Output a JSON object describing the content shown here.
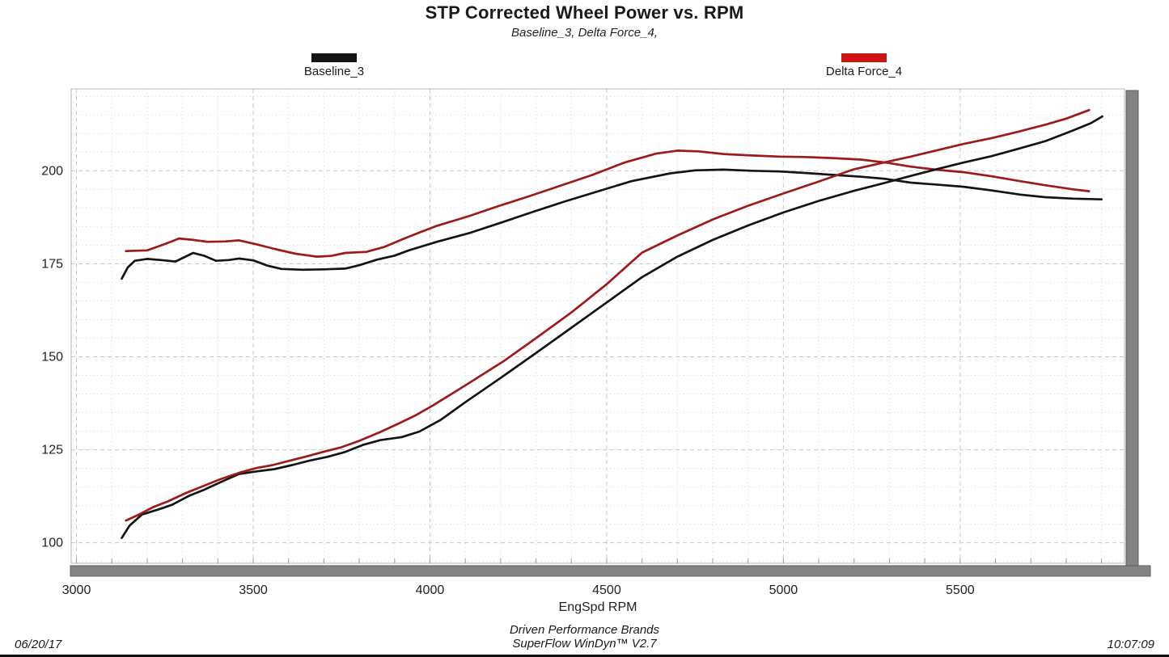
{
  "header": {
    "title": "STP Corrected Wheel Power vs. RPM",
    "subtitle": "Baseline_3,  Delta Force_4,"
  },
  "legend": {
    "items": [
      {
        "label": "Baseline_3",
        "color": "#141414"
      },
      {
        "label": "Delta Force_4",
        "color": "#cc1414"
      }
    ]
  },
  "footer": {
    "date": "06/20/17",
    "brand_line1": "Driven Performance Brands",
    "brand_line2": "SuperFlow WinDyn™ V2.7",
    "time": "10:07:09"
  },
  "chart_data": {
    "type": "line",
    "title": "STP Corrected Wheel Power vs. RPM",
    "subtitle": "Baseline_3, Delta Force_4,",
    "xlabel": "EngSpd  RPM",
    "ylabel": "",
    "xlim": [
      2985,
      5965
    ],
    "ylim": [
      94.5,
      222
    ],
    "x_ticks": [
      3000,
      3500,
      4000,
      4500,
      5000,
      5500
    ],
    "y_ticks": [
      100,
      125,
      150,
      175,
      200
    ],
    "x_minor_step": 100,
    "y_minor_step": 5,
    "grid": true,
    "legend_position": "top",
    "series": [
      {
        "name": "Baseline_3 (upper curve)",
        "color": "#141414",
        "points": [
          [
            3128,
            171.0
          ],
          [
            3145,
            174.0
          ],
          [
            3165,
            175.8
          ],
          [
            3200,
            176.3
          ],
          [
            3240,
            176.0
          ],
          [
            3280,
            175.6
          ],
          [
            3330,
            177.9
          ],
          [
            3360,
            177.2
          ],
          [
            3395,
            175.8
          ],
          [
            3430,
            176.0
          ],
          [
            3460,
            176.4
          ],
          [
            3500,
            175.9
          ],
          [
            3540,
            174.5
          ],
          [
            3580,
            173.6
          ],
          [
            3640,
            173.4
          ],
          [
            3700,
            173.5
          ],
          [
            3760,
            173.7
          ],
          [
            3800,
            174.6
          ],
          [
            3850,
            176.1
          ],
          [
            3900,
            177.2
          ],
          [
            3940,
            178.6
          ],
          [
            4020,
            180.9
          ],
          [
            4110,
            183.2
          ],
          [
            4200,
            186.0
          ],
          [
            4290,
            188.9
          ],
          [
            4380,
            191.7
          ],
          [
            4470,
            194.3
          ],
          [
            4570,
            197.2
          ],
          [
            4680,
            199.3
          ],
          [
            4750,
            200.1
          ],
          [
            4830,
            200.3
          ],
          [
            4910,
            200.0
          ],
          [
            4990,
            199.8
          ],
          [
            5060,
            199.4
          ],
          [
            5140,
            198.9
          ],
          [
            5220,
            198.4
          ],
          [
            5290,
            197.8
          ],
          [
            5360,
            196.8
          ],
          [
            5430,
            196.3
          ],
          [
            5510,
            195.7
          ],
          [
            5590,
            194.7
          ],
          [
            5670,
            193.6
          ],
          [
            5740,
            192.9
          ],
          [
            5820,
            192.5
          ],
          [
            5900,
            192.3
          ]
        ]
      },
      {
        "name": "Delta Force_4 (upper curve)",
        "color": "#9e1a1a",
        "points": [
          [
            3140,
            178.4
          ],
          [
            3200,
            178.6
          ],
          [
            3250,
            180.3
          ],
          [
            3290,
            181.8
          ],
          [
            3330,
            181.4
          ],
          [
            3370,
            180.9
          ],
          [
            3420,
            181.0
          ],
          [
            3460,
            181.3
          ],
          [
            3510,
            180.2
          ],
          [
            3560,
            179.0
          ],
          [
            3620,
            177.7
          ],
          [
            3680,
            176.9
          ],
          [
            3720,
            177.1
          ],
          [
            3760,
            177.9
          ],
          [
            3820,
            178.2
          ],
          [
            3870,
            179.5
          ],
          [
            3920,
            181.5
          ],
          [
            3970,
            183.4
          ],
          [
            4020,
            185.2
          ],
          [
            4110,
            187.8
          ],
          [
            4200,
            190.7
          ],
          [
            4270,
            192.8
          ],
          [
            4360,
            195.7
          ],
          [
            4460,
            198.9
          ],
          [
            4550,
            202.2
          ],
          [
            4640,
            204.6
          ],
          [
            4700,
            205.4
          ],
          [
            4760,
            205.2
          ],
          [
            4830,
            204.5
          ],
          [
            4910,
            204.1
          ],
          [
            4990,
            203.8
          ],
          [
            5060,
            203.7
          ],
          [
            5140,
            203.4
          ],
          [
            5220,
            203.0
          ],
          [
            5290,
            202.2
          ],
          [
            5360,
            201.1
          ],
          [
            5430,
            200.3
          ],
          [
            5510,
            199.6
          ],
          [
            5590,
            198.5
          ],
          [
            5670,
            197.2
          ],
          [
            5740,
            196.1
          ],
          [
            5820,
            195.0
          ],
          [
            5865,
            194.5
          ]
        ]
      },
      {
        "name": "Baseline_3 (rising curve)",
        "color": "#141414",
        "points": [
          [
            3128,
            101.3
          ],
          [
            3150,
            104.6
          ],
          [
            3185,
            107.6
          ],
          [
            3230,
            108.9
          ],
          [
            3270,
            110.2
          ],
          [
            3320,
            112.7
          ],
          [
            3360,
            114.2
          ],
          [
            3410,
            116.4
          ],
          [
            3460,
            118.5
          ],
          [
            3510,
            119.2
          ],
          [
            3560,
            119.8
          ],
          [
            3610,
            120.9
          ],
          [
            3660,
            122.1
          ],
          [
            3710,
            123.1
          ],
          [
            3760,
            124.4
          ],
          [
            3810,
            126.3
          ],
          [
            3860,
            127.6
          ],
          [
            3920,
            128.4
          ],
          [
            3970,
            129.9
          ],
          [
            4030,
            133.0
          ],
          [
            4100,
            137.8
          ],
          [
            4200,
            144.3
          ],
          [
            4300,
            151.0
          ],
          [
            4400,
            157.8
          ],
          [
            4500,
            164.6
          ],
          [
            4600,
            171.4
          ],
          [
            4700,
            176.9
          ],
          [
            4800,
            181.4
          ],
          [
            4900,
            185.3
          ],
          [
            5000,
            188.8
          ],
          [
            5100,
            191.9
          ],
          [
            5200,
            194.6
          ],
          [
            5277,
            196.5
          ],
          [
            5356,
            198.5
          ],
          [
            5433,
            200.4
          ],
          [
            5509,
            202.2
          ],
          [
            5588,
            203.9
          ],
          [
            5665,
            205.9
          ],
          [
            5742,
            208.0
          ],
          [
            5821,
            210.9
          ],
          [
            5870,
            212.8
          ],
          [
            5902,
            214.6
          ]
        ]
      },
      {
        "name": "Delta Force_4 (rising curve)",
        "color": "#9e1a1a",
        "points": [
          [
            3140,
            106.0
          ],
          [
            3175,
            107.5
          ],
          [
            3215,
            109.5
          ],
          [
            3260,
            111.2
          ],
          [
            3310,
            113.4
          ],
          [
            3360,
            115.3
          ],
          [
            3410,
            117.2
          ],
          [
            3460,
            118.8
          ],
          [
            3510,
            120.1
          ],
          [
            3555,
            120.9
          ],
          [
            3600,
            122.0
          ],
          [
            3650,
            123.2
          ],
          [
            3700,
            124.5
          ],
          [
            3750,
            125.7
          ],
          [
            3800,
            127.4
          ],
          [
            3860,
            129.8
          ],
          [
            3910,
            132.0
          ],
          [
            3960,
            134.3
          ],
          [
            4010,
            137.0
          ],
          [
            4100,
            142.3
          ],
          [
            4210,
            148.9
          ],
          [
            4300,
            155.0
          ],
          [
            4400,
            161.9
          ],
          [
            4500,
            169.5
          ],
          [
            4600,
            178.0
          ],
          [
            4700,
            182.6
          ],
          [
            4800,
            186.9
          ],
          [
            4900,
            190.6
          ],
          [
            5000,
            193.9
          ],
          [
            5100,
            197.1
          ],
          [
            5200,
            200.4
          ],
          [
            5280,
            202.1
          ],
          [
            5360,
            203.8
          ],
          [
            5430,
            205.4
          ],
          [
            5510,
            207.2
          ],
          [
            5590,
            208.8
          ],
          [
            5665,
            210.5
          ],
          [
            5742,
            212.4
          ],
          [
            5800,
            214.0
          ],
          [
            5865,
            216.3
          ]
        ]
      }
    ]
  }
}
